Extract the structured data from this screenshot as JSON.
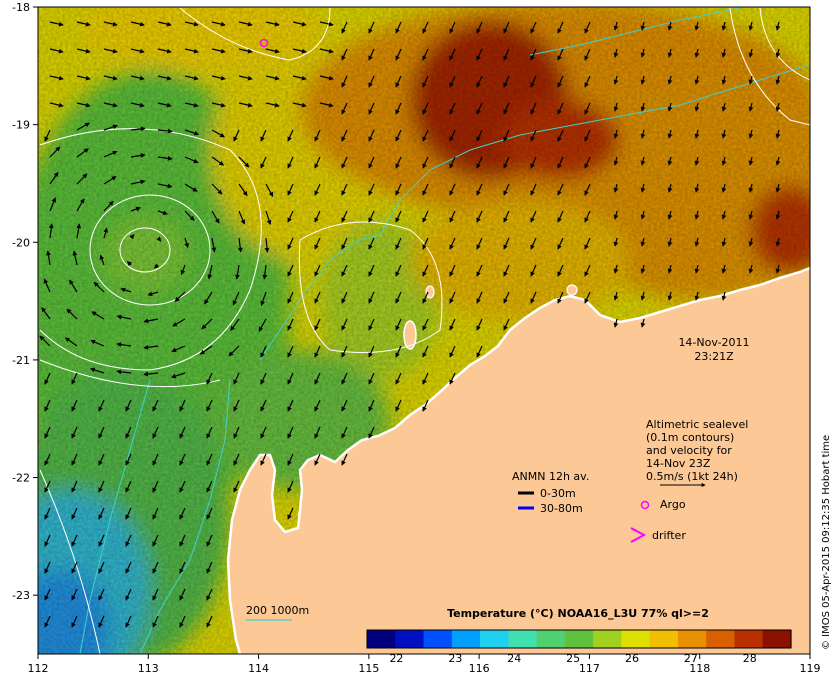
{
  "map": {
    "lon_ticks": [
      "112",
      "113",
      "114",
      "115",
      "116",
      "117",
      "118",
      "119"
    ],
    "lat_ticks": [
      "-18",
      "-19",
      "-20",
      "-21",
      "-22",
      "-23"
    ],
    "extent": {
      "lon": [
        112,
        119
      ],
      "lat": [
        -23.5,
        -18
      ]
    }
  },
  "annotations": {
    "date": "14-Nov-2011",
    "time": "23:21Z",
    "sealevel_lines": [
      "Altimetric sealevel",
      "(0.1m contours)",
      "and velocity for",
      "14-Nov 23Z",
      "0.5m/s (1kt 24h)"
    ],
    "anmn_title": "ANMN 12h av.",
    "anmn_shallow": "0-30m",
    "anmn_deep": "30-80m",
    "argo": "Argo",
    "drifter": "drifter",
    "isobath": "200  1000m",
    "credit": "© IMOS 05-Apr-2015 09:12:35 Hobart time"
  },
  "colorbar": {
    "title": "Temperature (°C) NOAA16_L3U 77% ql>=2",
    "ticks": [
      "22",
      "23",
      "24",
      "25",
      "26",
      "27",
      "28"
    ],
    "range": [
      21.5,
      28.7
    ],
    "colors": [
      "#00007f",
      "#0010c0",
      "#0050ff",
      "#00a0ff",
      "#20d0f0",
      "#40e0b0",
      "#50d070",
      "#60c040",
      "#a0d020",
      "#e0e000",
      "#f0c000",
      "#e89000",
      "#d86000",
      "#b83000",
      "#8a1000"
    ]
  },
  "colors": {
    "land": "#fcc896",
    "coast": "#ffffff",
    "isobath": "#40d0d0",
    "contour": "#ffffff",
    "argo": "#ff00ff",
    "drifter": "#ff00ff",
    "anmn_shallow": "#000000",
    "anmn_deep": "#0000ff"
  }
}
